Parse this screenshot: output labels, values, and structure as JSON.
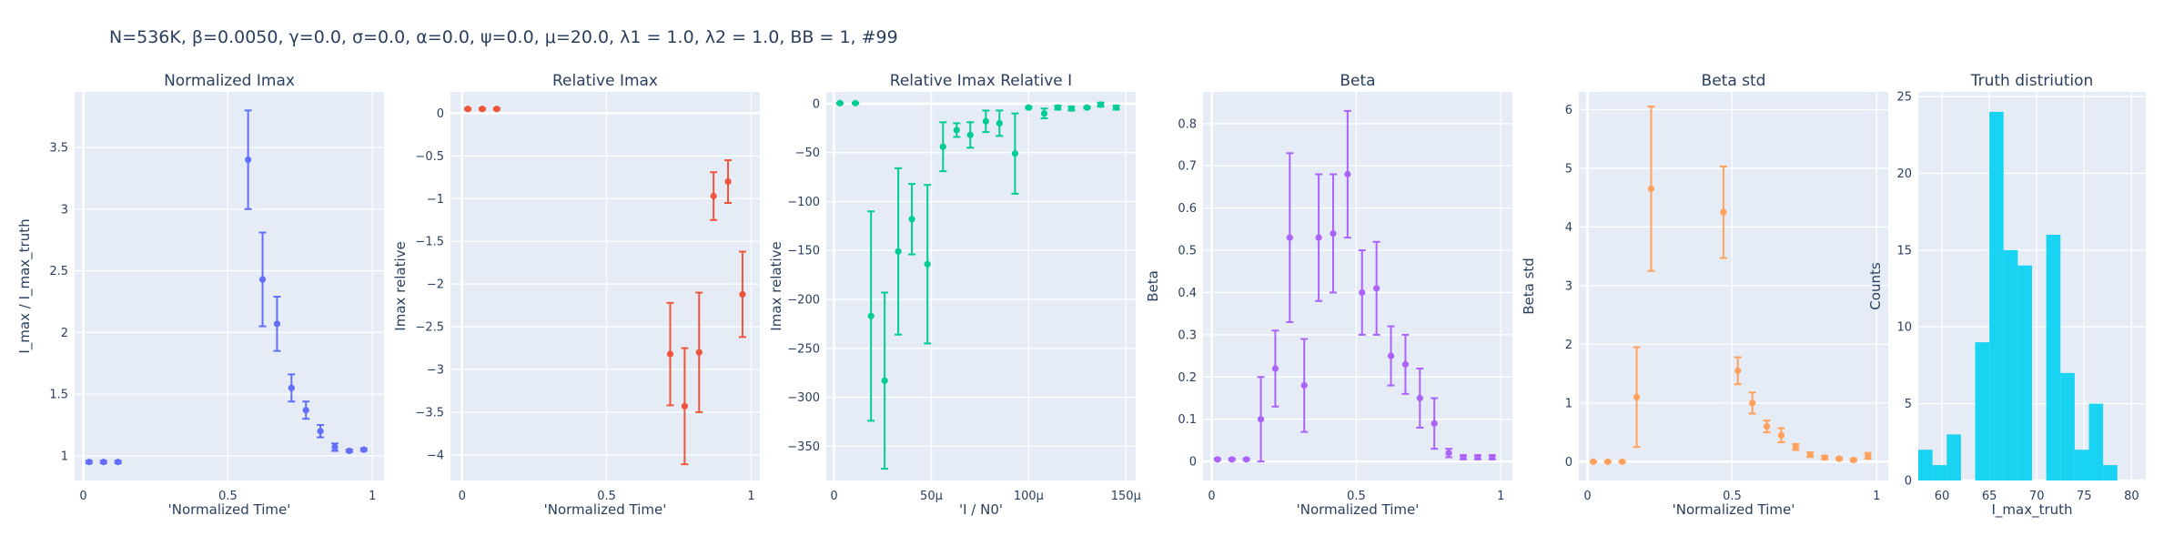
{
  "figure_title": "N=536K, β=0.0050, γ=0.0, σ=0.0,  α=0.0, ψ=0.0, μ=20.0, λ1 = 1.0, λ2 = 1.0, BB = 1, #99",
  "chart_data": [
    {
      "type": "scatter",
      "title": "Normalized Imax",
      "xlabel": "'Normalized Time'",
      "ylabel": "I_max / I_max_truth",
      "color": "#636EFA",
      "xlim": [
        -0.03,
        1.04
      ],
      "ylim": [
        0.8,
        3.95
      ],
      "xticks": [
        0,
        0.5,
        1
      ],
      "xtick_labels": [
        "0",
        "0.5",
        "1"
      ],
      "yticks": [
        1,
        1.5,
        2,
        2.5,
        3,
        3.5
      ],
      "ytick_labels": [
        "1",
        "1.5",
        "2",
        "2.5",
        "3",
        "3.5"
      ],
      "x": [
        0.02,
        0.07,
        0.12,
        0.57,
        0.62,
        0.67,
        0.72,
        0.77,
        0.82,
        0.87,
        0.92,
        0.97
      ],
      "y": [
        0.95,
        0.95,
        0.95,
        3.4,
        2.43,
        2.07,
        1.55,
        1.37,
        1.2,
        1.07,
        1.04,
        1.05
      ],
      "err": [
        0.01,
        0.01,
        0.01,
        0.4,
        0.38,
        0.22,
        0.11,
        0.07,
        0.05,
        0.03,
        0.01,
        0.01
      ]
    },
    {
      "type": "scatter",
      "title": "Relative Imax",
      "xlabel": "'Normalized Time'",
      "ylabel": "Imax relative",
      "color": "#EF553B",
      "xlim": [
        -0.04,
        1.03
      ],
      "ylim": [
        -4.3,
        0.25
      ],
      "xticks": [
        0,
        0.5,
        1
      ],
      "xtick_labels": [
        "0",
        "0.5",
        "1"
      ],
      "yticks": [
        0,
        -0.5,
        -1,
        -1.5,
        -2,
        -2.5,
        -3,
        -3.5,
        -4
      ],
      "ytick_labels": [
        "0",
        "−0.5",
        "−1",
        "−1.5",
        "−2",
        "−2.5",
        "−3",
        "−3.5",
        "−4"
      ],
      "x": [
        0.02,
        0.07,
        0.12,
        0.72,
        0.77,
        0.82,
        0.87,
        0.92,
        0.97
      ],
      "y": [
        0.05,
        0.05,
        0.05,
        -2.82,
        -3.43,
        -2.8,
        -0.97,
        -0.8,
        -2.12
      ],
      "err": [
        0.01,
        0.01,
        0.01,
        0.6,
        0.68,
        0.7,
        0.28,
        0.25,
        0.5
      ]
    },
    {
      "type": "scatter",
      "title": "Relative Imax Relative I",
      "xlabel": "'I / N0'",
      "ylabel": "Imax relative",
      "color": "#00CC96",
      "xlim": [
        -4e-06,
        0.000155
      ],
      "ylim": [
        -385,
        12
      ],
      "xticks": [
        0,
        5e-05,
        0.0001,
        0.00015
      ],
      "xtick_labels": [
        "0",
        "50μ",
        "100μ",
        "150μ"
      ],
      "yticks": [
        0,
        -50,
        -100,
        -150,
        -200,
        -250,
        -300,
        -350
      ],
      "ytick_labels": [
        "0",
        "−50",
        "−100",
        "−150",
        "−200",
        "−250",
        "−300",
        "−350"
      ],
      "x": [
        3e-06,
        1.1e-05,
        1.9e-05,
        2.6e-05,
        3.3e-05,
        4e-05,
        4.8e-05,
        5.6e-05,
        6.3e-05,
        7e-05,
        7.8e-05,
        8.5e-05,
        9.3e-05,
        0.0001,
        0.000108,
        0.000115,
        0.000122,
        0.00013,
        0.000137,
        0.000145
      ],
      "y": [
        0.5,
        0.5,
        -217,
        -283,
        -151,
        -118,
        -164,
        -44,
        -27,
        -32,
        -18,
        -20,
        -51,
        -4,
        -10,
        -4,
        -5,
        -4,
        -1,
        -4
      ],
      "err": [
        0.5,
        0.5,
        107,
        90,
        85,
        36,
        81,
        25,
        7,
        13,
        11,
        13,
        41,
        1,
        5,
        2,
        2,
        1,
        2,
        2
      ]
    },
    {
      "type": "scatter",
      "title": "Beta",
      "xlabel": "'Normalized Time'",
      "ylabel": "Beta",
      "color": "#AB63FA",
      "xlim": [
        -0.03,
        1.04
      ],
      "ylim": [
        -0.045,
        0.875
      ],
      "xticks": [
        0,
        0.5,
        1
      ],
      "xtick_labels": [
        "0",
        "0.5",
        "1"
      ],
      "yticks": [
        0,
        0.1,
        0.2,
        0.3,
        0.4,
        0.5,
        0.6,
        0.7,
        0.8
      ],
      "ytick_labels": [
        "0",
        "0.1",
        "0.2",
        "0.3",
        "0.4",
        "0.5",
        "0.6",
        "0.7",
        "0.8"
      ],
      "x": [
        0.02,
        0.07,
        0.12,
        0.17,
        0.22,
        0.27,
        0.32,
        0.37,
        0.42,
        0.47,
        0.52,
        0.57,
        0.62,
        0.67,
        0.72,
        0.77,
        0.82,
        0.87,
        0.92,
        0.97
      ],
      "y": [
        0.005,
        0.005,
        0.005,
        0.1,
        0.22,
        0.53,
        0.18,
        0.53,
        0.54,
        0.68,
        0.4,
        0.41,
        0.25,
        0.23,
        0.15,
        0.09,
        0.02,
        0.01,
        0.01,
        0.01
      ],
      "err": [
        0.002,
        0.002,
        0.002,
        0.1,
        0.09,
        0.2,
        0.11,
        0.15,
        0.14,
        0.15,
        0.1,
        0.11,
        0.07,
        0.07,
        0.07,
        0.06,
        0.01,
        0.005,
        0.005,
        0.005
      ]
    },
    {
      "type": "scatter",
      "title": "Beta std",
      "xlabel": "'Normalized Time'",
      "ylabel": "Beta std",
      "color": "#FFA15A",
      "xlim": [
        -0.03,
        1.04
      ],
      "ylim": [
        -0.32,
        6.3
      ],
      "xticks": [
        0,
        0.5,
        1
      ],
      "xtick_labels": [
        "0",
        "0.5",
        "1"
      ],
      "yticks": [
        0,
        1,
        2,
        3,
        4,
        5,
        6
      ],
      "ytick_labels": [
        "0",
        "1",
        "2",
        "3",
        "4",
        "5",
        "6"
      ],
      "x": [
        0.02,
        0.07,
        0.12,
        0.17,
        0.22,
        0.47,
        0.52,
        0.57,
        0.62,
        0.67,
        0.72,
        0.77,
        0.82,
        0.87,
        0.92,
        0.97
      ],
      "y": [
        0.0,
        0.0,
        0.0,
        1.1,
        4.65,
        4.25,
        1.55,
        1.0,
        0.6,
        0.45,
        0.25,
        0.12,
        0.07,
        0.05,
        0.03,
        0.1
      ],
      "err": [
        0.01,
        0.01,
        0.01,
        0.85,
        1.4,
        0.78,
        0.23,
        0.18,
        0.1,
        0.12,
        0.05,
        0.04,
        0.03,
        0.02,
        0.02,
        0.05
      ]
    },
    {
      "type": "bar",
      "title": "Truth distriution",
      "xlabel": "I_max_truth",
      "ylabel": "Counts",
      "color": "#19D3F3",
      "xlim": [
        57.5,
        81.5
      ],
      "ylim": [
        0,
        25.3
      ],
      "xticks": [
        60,
        65,
        70,
        75,
        80
      ],
      "xtick_labels": [
        "60",
        "65",
        "70",
        "75",
        "80"
      ],
      "yticks": [
        0,
        5,
        10,
        15,
        20,
        25
      ],
      "ytick_labels": [
        "0",
        "5",
        "10",
        "15",
        "20",
        "25"
      ],
      "bin_width": 1.5,
      "bin_start": [
        57.5,
        59,
        60.5,
        62,
        63.5,
        65,
        66.5,
        68,
        69.5,
        71,
        72.5,
        74,
        75.5,
        77,
        78.5,
        80
      ],
      "counts": [
        2,
        1,
        3,
        0,
        9,
        24,
        15,
        14,
        0,
        16,
        7,
        2,
        5,
        1,
        0,
        0
      ]
    }
  ]
}
